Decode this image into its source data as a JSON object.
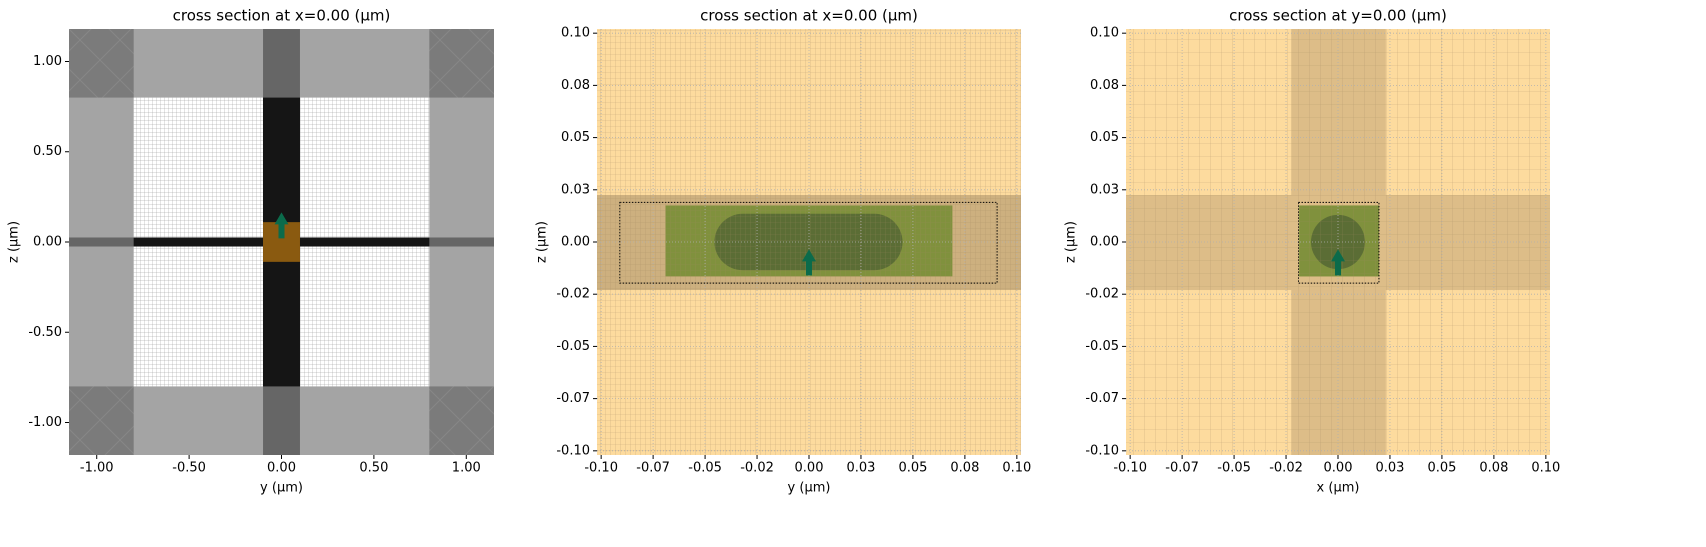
{
  "chart_data": [
    {
      "type": "section",
      "title": "cross section at x=0.00 (μm)",
      "xlabel": "y (μm)",
      "ylabel": "z (μm)",
      "xlim": [
        -1.15,
        1.15
      ],
      "ylim": [
        -1.18,
        1.18
      ],
      "xticks": [
        {
          "value": -1,
          "label": "-1.00"
        },
        {
          "value": -0.5,
          "label": "-0.50"
        },
        {
          "value": 0,
          "label": "0.00"
        },
        {
          "value": 0.5,
          "label": "0.50"
        },
        {
          "value": 1,
          "label": "1.00"
        }
      ],
      "yticks": [
        {
          "value": -1,
          "label": "-1.00"
        },
        {
          "value": -0.5,
          "label": "-0.50"
        },
        {
          "value": 0,
          "label": "0.00"
        },
        {
          "value": 0.5,
          "label": "0.50"
        },
        {
          "value": 1,
          "label": "1.00"
        }
      ],
      "grid": false,
      "background": "#7b7b7b",
      "rects": [
        {
          "shape": "rect",
          "x": [
            -1.15,
            1.15
          ],
          "y": [
            -0.8,
            0.8
          ],
          "color": "#a4a4a4"
        },
        {
          "shape": "rect",
          "x": [
            -0.8,
            0.8
          ],
          "y": [
            -1.18,
            1.18
          ],
          "color": "#a4a4a4"
        },
        {
          "shape": "rect",
          "x": [
            -0.8,
            0.8
          ],
          "y": [
            -0.8,
            0.8
          ],
          "color": "#ffffff"
        },
        {
          "shape": "rect",
          "x": [
            -0.1,
            0.1
          ],
          "y": [
            -1.18,
            1.18
          ],
          "color": "#666666"
        },
        {
          "shape": "rect",
          "x": [
            -1.15,
            1.15
          ],
          "y": [
            -0.025,
            0.025
          ],
          "color": "#666666"
        },
        {
          "shape": "rect",
          "x": [
            -0.1,
            0.1
          ],
          "y": [
            -0.8,
            0.8
          ],
          "color": "#151515"
        },
        {
          "shape": "rect",
          "x": [
            -0.8,
            0.8
          ],
          "y": [
            -0.025,
            0.025
          ],
          "color": "#151515"
        },
        {
          "shape": "rect",
          "x": [
            -0.1,
            0.1
          ],
          "y": [
            -0.11,
            0.11
          ],
          "color": "#8a5a10"
        }
      ],
      "source": {
        "x": 0,
        "y": 0.02,
        "color": "#0b6b4b"
      }
    },
    {
      "type": "section",
      "title": "cross section at x=0.00 (μm)",
      "xlabel": "y (μm)",
      "ylabel": "z (μm)",
      "xlim": [
        -0.102,
        0.102
      ],
      "ylim": [
        -0.102,
        0.102
      ],
      "xticks": [
        {
          "value": -0.1,
          "label": "-0.10"
        },
        {
          "value": -0.075,
          "label": "-0.07"
        },
        {
          "value": -0.05,
          "label": "-0.05"
        },
        {
          "value": -0.025,
          "label": "-0.02"
        },
        {
          "value": 0,
          "label": "0.00"
        },
        {
          "value": 0.025,
          "label": "0.03"
        },
        {
          "value": 0.05,
          "label": "0.05"
        },
        {
          "value": 0.075,
          "label": "0.08"
        },
        {
          "value": 0.1,
          "label": "0.10"
        }
      ],
      "yticks": [
        {
          "value": -0.1,
          "label": "-0.10"
        },
        {
          "value": -0.075,
          "label": "-0.07"
        },
        {
          "value": -0.05,
          "label": "-0.05"
        },
        {
          "value": -0.025,
          "label": "-0.02"
        },
        {
          "value": 0,
          "label": "0.00"
        },
        {
          "value": 0.025,
          "label": "0.03"
        },
        {
          "value": 0.05,
          "label": "0.05"
        },
        {
          "value": 0.075,
          "label": "0.08"
        },
        {
          "value": 0.1,
          "label": "0.10"
        }
      ],
      "grid": true,
      "background": "#fddb9e",
      "rects": [
        {
          "shape": "rect",
          "x": [
            -0.102,
            0.102
          ],
          "y": [
            -0.023,
            0.0225
          ],
          "color": "#cdb07f"
        },
        {
          "shape": "rect",
          "x": [
            -0.069,
            0.069
          ],
          "y": [
            -0.0165,
            0.0175
          ],
          "color": "#80913d"
        },
        {
          "shape": "stadium",
          "x": [
            -0.0455,
            0.045
          ],
          "y": [
            -0.0135,
            0.0135
          ],
          "color": "#5b6d35"
        },
        {
          "shape": "dashed",
          "x": [
            -0.091,
            0.0905
          ],
          "y": [
            -0.0197,
            0.019
          ],
          "color": "#000000"
        }
      ],
      "source": {
        "x": 0,
        "y": -0.016,
        "color": "#0b6b4b"
      }
    },
    {
      "type": "section",
      "title": "cross section at y=0.00 (μm)",
      "xlabel": "x (μm)",
      "ylabel": "z (μm)",
      "xlim": [
        -0.102,
        0.102
      ],
      "ylim": [
        -0.102,
        0.102
      ],
      "xticks": [
        {
          "value": -0.1,
          "label": "-0.10"
        },
        {
          "value": -0.075,
          "label": "-0.07"
        },
        {
          "value": -0.05,
          "label": "-0.05"
        },
        {
          "value": -0.025,
          "label": "-0.02"
        },
        {
          "value": 0,
          "label": "0.00"
        },
        {
          "value": 0.025,
          "label": "0.03"
        },
        {
          "value": 0.05,
          "label": "0.05"
        },
        {
          "value": 0.075,
          "label": "0.08"
        },
        {
          "value": 0.1,
          "label": "0.10"
        }
      ],
      "yticks": [
        {
          "value": -0.1,
          "label": "-0.10"
        },
        {
          "value": -0.075,
          "label": "-0.07"
        },
        {
          "value": -0.05,
          "label": "-0.05"
        },
        {
          "value": -0.025,
          "label": "-0.02"
        },
        {
          "value": 0,
          "label": "0.00"
        },
        {
          "value": 0.025,
          "label": "0.03"
        },
        {
          "value": 0.05,
          "label": "0.05"
        },
        {
          "value": 0.075,
          "label": "0.08"
        },
        {
          "value": 0.1,
          "label": "0.10"
        }
      ],
      "grid": true,
      "background": "#fddb9e",
      "rects": [
        {
          "shape": "rect",
          "x": [
            -0.0225,
            0.023
          ],
          "y": [
            -0.102,
            0.102
          ],
          "color": "#ddbd88"
        },
        {
          "shape": "rect",
          "x": [
            -0.102,
            0.102
          ],
          "y": [
            -0.023,
            0.0225
          ],
          "color": "#ddbd88"
        },
        {
          "shape": "rect",
          "x": [
            -0.0187,
            0.0197
          ],
          "y": [
            -0.0165,
            0.0175
          ],
          "color": "#80913d"
        },
        {
          "shape": "ellipse",
          "x": [
            -0.013,
            0.013
          ],
          "y": [
            -0.013,
            0.013
          ],
          "color": "#5b6d35"
        },
        {
          "shape": "dashed",
          "x": [
            -0.019,
            0.0197
          ],
          "y": [
            -0.0197,
            0.019
          ],
          "color": "#000000"
        }
      ],
      "source": {
        "x": 0,
        "y": -0.016,
        "color": "#0b6b4b"
      }
    }
  ]
}
